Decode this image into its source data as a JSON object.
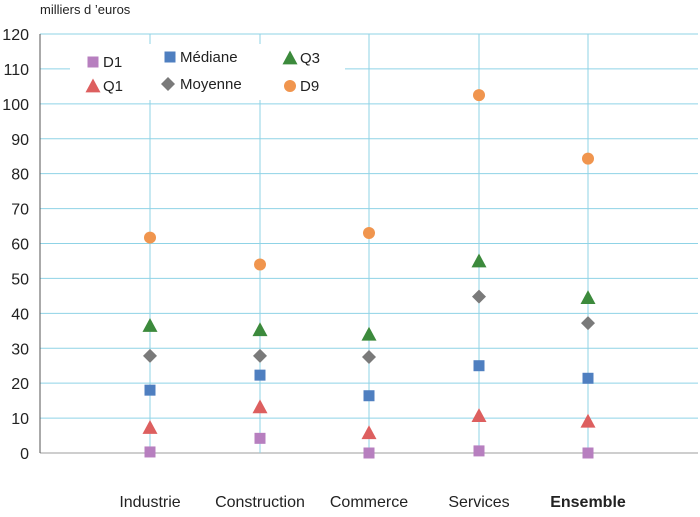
{
  "chart_data": {
    "type": "scatter",
    "unit_label": "milliers d ’euros",
    "categories": [
      "Industrie",
      "Construction",
      "Commerce",
      "Services",
      "Ensemble"
    ],
    "bold_categories": [
      "Ensemble"
    ],
    "ylim": [
      0,
      120
    ],
    "yticks": [
      0,
      10,
      20,
      30,
      40,
      50,
      60,
      70,
      80,
      90,
      100,
      110,
      120
    ],
    "grid": {
      "horizontal": true,
      "vertical_at_categories": true
    },
    "legend_position": "top-left",
    "series": [
      {
        "name": "D1",
        "marker": "square",
        "color": "#b77fbf",
        "values": [
          0.3,
          4.2,
          0.0,
          0.6,
          0.0
        ]
      },
      {
        "name": "Médiane",
        "marker": "square",
        "color": "#4f7fc0",
        "values": [
          18,
          22.3,
          16.4,
          25,
          21.4
        ]
      },
      {
        "name": "Q3",
        "marker": "triangle",
        "color": "#3c8a3c",
        "values": [
          36.5,
          35.3,
          34,
          55,
          44.5
        ]
      },
      {
        "name": "Q1",
        "marker": "triangle",
        "color": "#dd5f5f",
        "values": [
          7.3,
          13.2,
          5.8,
          10.7,
          9.1
        ]
      },
      {
        "name": "Moyenne",
        "marker": "diamond",
        "color": "#7a7a7a",
        "values": [
          27.8,
          27.8,
          27.5,
          44.8,
          37.2
        ]
      },
      {
        "name": "D9",
        "marker": "circle",
        "color": "#f0954e",
        "values": [
          61.7,
          54,
          63,
          102.5,
          84.3
        ]
      }
    ]
  }
}
